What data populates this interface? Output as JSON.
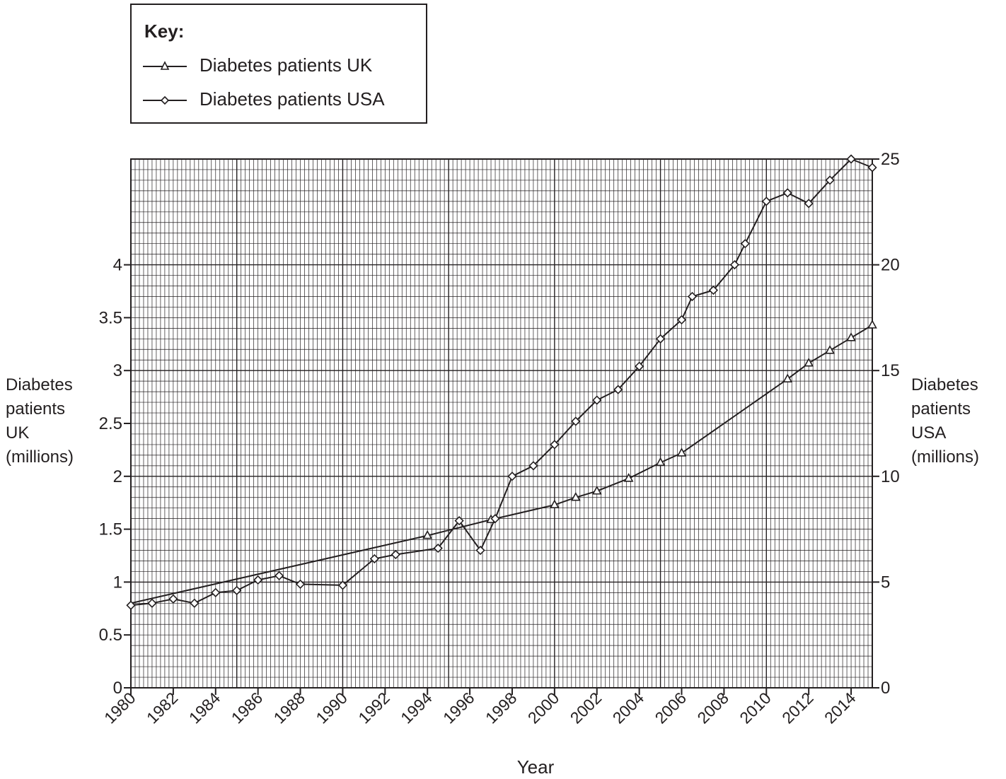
{
  "legend": {
    "title": "Key:",
    "items": [
      {
        "label": "Diabetes patients UK",
        "marker": "triangle"
      },
      {
        "label": "Diabetes patients USA",
        "marker": "diamond"
      }
    ]
  },
  "chart_data": {
    "type": "line",
    "xlabel": "Year",
    "ylabel_left": "Diabetes\npatients\nUK\n(millions)",
    "ylabel_right": "Diabetes\npatients\nUSA\n(millions)",
    "xlim": [
      1980,
      2015
    ],
    "ylim_left": [
      0,
      5
    ],
    "ylim_right": [
      0,
      25
    ],
    "x_ticks": [
      "1980",
      "1982",
      "1984",
      "1986",
      "1988",
      "1990",
      "1992",
      "1994",
      "1996",
      "1998",
      "2000",
      "2002",
      "2004",
      "2006",
      "2008",
      "2010",
      "2012",
      "2014"
    ],
    "y_ticks_left": [
      "0",
      "0.5",
      "1",
      "1.5",
      "2",
      "2.5",
      "3",
      "3.5",
      "4"
    ],
    "y_ticks_right": [
      "0",
      "5",
      "10",
      "15",
      "20",
      "25"
    ],
    "grid": true,
    "series": [
      {
        "name": "Diabetes patients UK",
        "axis": "left",
        "marker": "triangle",
        "line_points": [
          [
            1980,
            0.8
          ],
          [
            1994,
            1.44
          ],
          [
            1997,
            1.59
          ],
          [
            2000,
            1.73
          ],
          [
            2001,
            1.8
          ],
          [
            2002,
            1.86
          ],
          [
            2003.5,
            1.98
          ],
          [
            2005,
            2.13
          ],
          [
            2006,
            2.22
          ],
          [
            2011,
            2.92
          ],
          [
            2012,
            3.07
          ],
          [
            2013,
            3.19
          ],
          [
            2014,
            3.31
          ],
          [
            2015,
            3.43
          ]
        ],
        "points": [
          [
            1994,
            1.44
          ],
          [
            1997,
            1.59
          ],
          [
            2000,
            1.73
          ],
          [
            2001,
            1.8
          ],
          [
            2002,
            1.86
          ],
          [
            2003.5,
            1.98
          ],
          [
            2005,
            2.13
          ],
          [
            2006,
            2.22
          ],
          [
            2011,
            2.92
          ],
          [
            2012,
            3.07
          ],
          [
            2013,
            3.19
          ],
          [
            2014,
            3.31
          ],
          [
            2015,
            3.43
          ]
        ]
      },
      {
        "name": "Diabetes patients USA",
        "axis": "right",
        "marker": "diamond",
        "points": [
          [
            1980,
            3.9
          ],
          [
            1981,
            4.0
          ],
          [
            1982,
            4.2
          ],
          [
            1983,
            4.0
          ],
          [
            1984,
            4.5
          ],
          [
            1985,
            4.6
          ],
          [
            1986,
            5.1
          ],
          [
            1987,
            5.3
          ],
          [
            1988,
            4.9
          ],
          [
            1990,
            4.85
          ],
          [
            1991.5,
            6.1
          ],
          [
            1992.5,
            6.3
          ],
          [
            1994.5,
            6.6
          ],
          [
            1995.5,
            7.9
          ],
          [
            1996.5,
            6.5
          ],
          [
            1997.2,
            8.0
          ],
          [
            1998,
            10.0
          ],
          [
            1999,
            10.5
          ],
          [
            2000,
            11.5
          ],
          [
            2001,
            12.6
          ],
          [
            2002,
            13.6
          ],
          [
            2003,
            14.1
          ],
          [
            2004,
            15.2
          ],
          [
            2005,
            16.5
          ],
          [
            2006,
            17.4
          ],
          [
            2006.5,
            18.5
          ],
          [
            2007.5,
            18.8
          ],
          [
            2008.5,
            20.0
          ],
          [
            2009,
            21.0
          ],
          [
            2010,
            23.0
          ],
          [
            2011,
            23.4
          ],
          [
            2012,
            22.9
          ],
          [
            2013,
            24.0
          ],
          [
            2014,
            25.0
          ],
          [
            2015,
            24.6
          ]
        ]
      }
    ]
  }
}
